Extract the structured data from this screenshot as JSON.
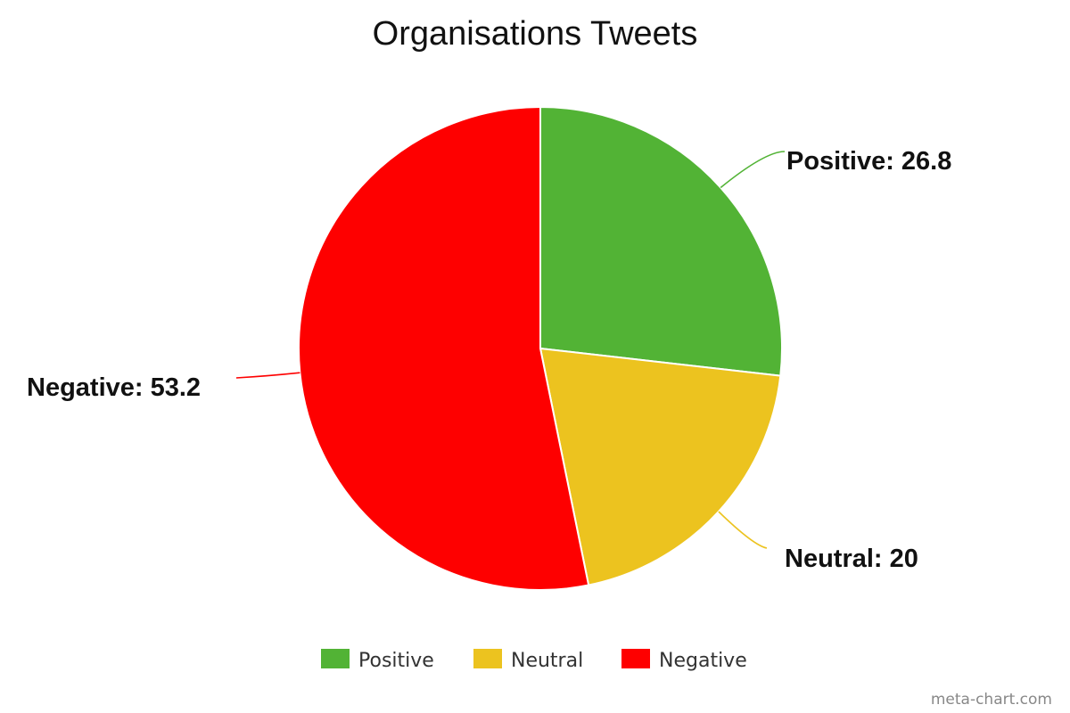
{
  "chart_data": {
    "type": "pie",
    "title": "Organisations Tweets",
    "slices": [
      {
        "name": "Positive",
        "value": 26.8,
        "color": "#52b335",
        "label": "Positive: 26.8"
      },
      {
        "name": "Neutral",
        "value": 20,
        "color": "#ecc31f",
        "label": "Neutral: 20"
      },
      {
        "name": "Negative",
        "value": 53.2,
        "color": "#fe0000",
        "label": "Negative: 53.2"
      }
    ],
    "legend": {
      "position": "bottom",
      "items": [
        "Positive",
        "Neutral",
        "Negative"
      ]
    },
    "start_angle": "top",
    "direction": "clockwise"
  },
  "footer": {
    "credit": "meta-chart.com"
  }
}
